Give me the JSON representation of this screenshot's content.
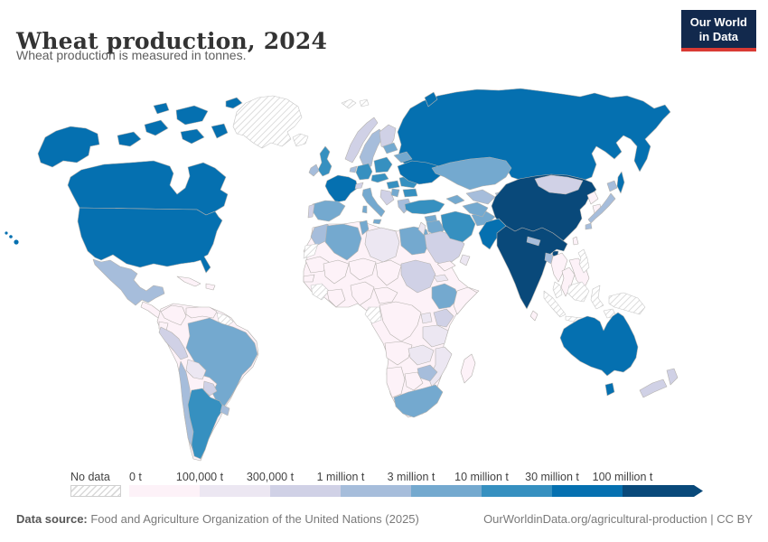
{
  "header": {
    "title": "Wheat production, 2024",
    "subtitle": "Wheat production is measured in tonnes.",
    "logo_line1": "Our World",
    "logo_line2": "in Data"
  },
  "colors": {
    "logo_bg": "#12294d",
    "logo_accent": "#d93a34",
    "country_border": "#b5b2ae",
    "ocean": "#ffffff"
  },
  "legend": {
    "no_data_label": "No data",
    "tick_labels": [
      "0 t",
      "100,000 t",
      "300,000 t",
      "1 million t",
      "3 million t",
      "10 million t",
      "30 million t",
      "100 million t"
    ],
    "palette": [
      "#fdf2f8",
      "#ece7f2",
      "#d0d1e6",
      "#a6bddb",
      "#74a9cf",
      "#3690c0",
      "#0570b0",
      "#09497a"
    ],
    "no_data_pattern": "diagonal-hatch"
  },
  "footer": {
    "source_label": "Data source:",
    "source_text": " Food and Agriculture Organization of the United Nations (2025)",
    "credit_text": "OurWorldinData.org/agricultural-production | CC BY"
  },
  "chart_data": {
    "type": "choropleth-map",
    "title": "Wheat production, 2024",
    "unit": "tonnes",
    "year": 2024,
    "bins": [
      "0 t",
      "100,000 t",
      "300,000 t",
      "1 million t",
      "3 million t",
      "10 million t",
      "30 million t",
      "100 million t"
    ],
    "bin_colors": [
      "#fdf2f8",
      "#ece7f2",
      "#d0d1e6",
      "#a6bddb",
      "#74a9cf",
      "#3690c0",
      "#0570b0",
      "#09497a"
    ],
    "legend_note": "regions map to legend bin index 0-7; 'nodata' = hatched",
    "regions": {
      "canada": 6,
      "ellesmere": 6,
      "united-states": 6,
      "hawaii": 6,
      "mexico": 3,
      "central-america": 0,
      "cuba": 0,
      "hispaniola": 0,
      "greenland": "nodata",
      "iceland": "nodata",
      "svalbard": "nodata",
      "colombia": 0,
      "venezuela": 0,
      "guyanas": "nodata",
      "ecuador": 0,
      "peru": 2,
      "brazil": 4,
      "bolivia": 1,
      "paraguay": 2,
      "chile": 3,
      "argentina": 5,
      "uruguay": 3,
      "south-america-base": 0,
      "united-kingdom": 5,
      "ireland": 3,
      "france": 6,
      "spain": 4,
      "portugal": 2,
      "germany": 5,
      "benelux": 3,
      "switzerland": 2,
      "italy": 4,
      "norway": 2,
      "sweden": 3,
      "finland": 2,
      "denmark": 5,
      "poland": 5,
      "czechia-austria": 5,
      "hungary": 5,
      "western-balkans": 2,
      "serbia": 4,
      "romania": 5,
      "bulgaria": 5,
      "greece": 3,
      "ukraine": 6,
      "belarus": 4,
      "baltic-states": 4,
      "russia": 6,
      "novaya-zemlya": 6,
      "sakhalin": 6,
      "turkey": 5,
      "caucasus": 4,
      "syria": 4,
      "iraq": 4,
      "levant": 1,
      "saudi-arabia": 2,
      "yemen": 0,
      "oman": 1,
      "iran": 5,
      "afghanistan": 4,
      "turkmenistan": 4,
      "uzbekistan": 3,
      "kazakhstan": 4,
      "kyrgyzstan-tajikistan": 3,
      "pakistan": 6,
      "india": 7,
      "nepal": 3,
      "bangladesh": 3,
      "sri-lanka": 0,
      "china": 7,
      "mongolia": 2,
      "north-korea": 0,
      "south-korea": 0,
      "japan": 3,
      "taiwan": 0,
      "myanmar": 0,
      "thailand": 0,
      "vietnam-laos": 0,
      "cambodia": 0,
      "malaysia": "nodata",
      "indonesia": "nodata",
      "philippines": "nodata",
      "papua-new-guinea": "nodata",
      "africa-base": 0,
      "morocco": 3,
      "western-sahara": "nodata",
      "algeria": 4,
      "tunisia": 4,
      "libya": 1,
      "egypt": 4,
      "mauritania": 0,
      "mali": 0,
      "niger": 0,
      "chad": 0,
      "sudan": 2,
      "eritrea": 1,
      "ethiopia": 4,
      "somalia": 0,
      "senegal": 0,
      "guinea-region": "nodata",
      "ghana-ivory-coast": 0,
      "nigeria": 0,
      "cameroon": 0,
      "congo": "nodata",
      "drc": 0,
      "uganda": 1,
      "kenya": 2,
      "tanzania": 1,
      "angola": 0,
      "zambia": 1,
      "zimbabwe": 3,
      "mozambique": 1,
      "namibia": 0,
      "botswana": 0,
      "south-africa": 4,
      "madagascar": 0,
      "australia": 6,
      "tasmania": 6,
      "new-zealand": 2
    }
  }
}
